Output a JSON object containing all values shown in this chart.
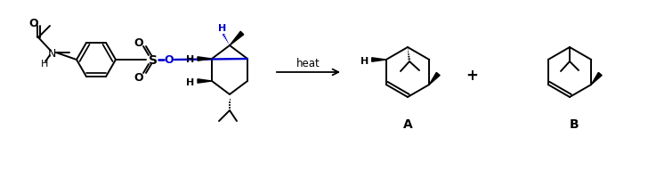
{
  "bg_color": "#ffffff",
  "text_color": "#000000",
  "blue_color": "#0000cd",
  "line_color": "#000000",
  "line_width": 1.4,
  "arrow_text": "heat",
  "label_A": "A",
  "label_B": "B",
  "plus_sign": "+",
  "figsize": [
    7.28,
    2.01
  ],
  "dpi": 100
}
